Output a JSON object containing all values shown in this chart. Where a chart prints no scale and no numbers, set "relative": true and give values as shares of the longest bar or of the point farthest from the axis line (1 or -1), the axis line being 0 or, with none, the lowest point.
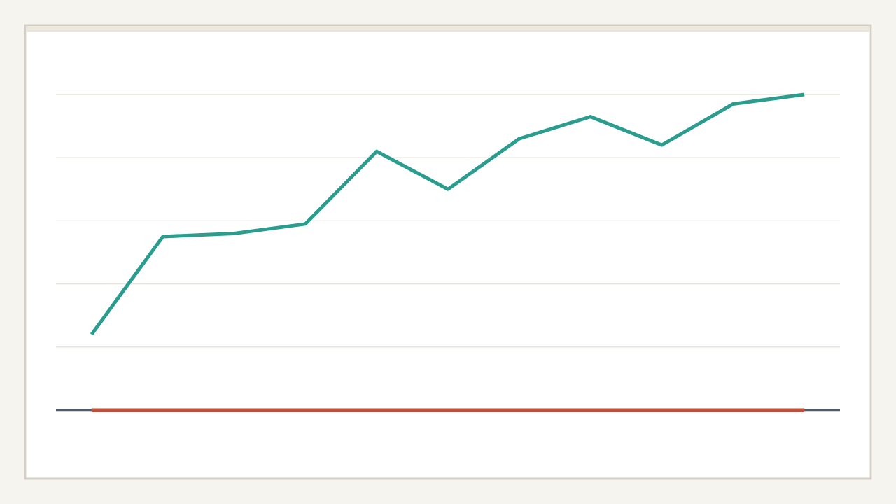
{
  "chart_data": {
    "type": "line",
    "relative": true,
    "grid": "y",
    "categories": [
      null,
      null,
      null,
      null,
      null,
      null,
      null,
      null,
      null,
      null,
      null
    ],
    "series": [
      {
        "color": "#2a9d8f",
        "values": [
          0.24,
          0.55,
          0.56,
          0.59,
          0.82,
          0.7,
          0.86,
          0.93,
          0.84,
          0.97,
          1.0
        ]
      },
      {
        "color": "#c0503a",
        "values": [
          0,
          0,
          0,
          0,
          0,
          0,
          0,
          0,
          0,
          0,
          0
        ]
      }
    ]
  }
}
